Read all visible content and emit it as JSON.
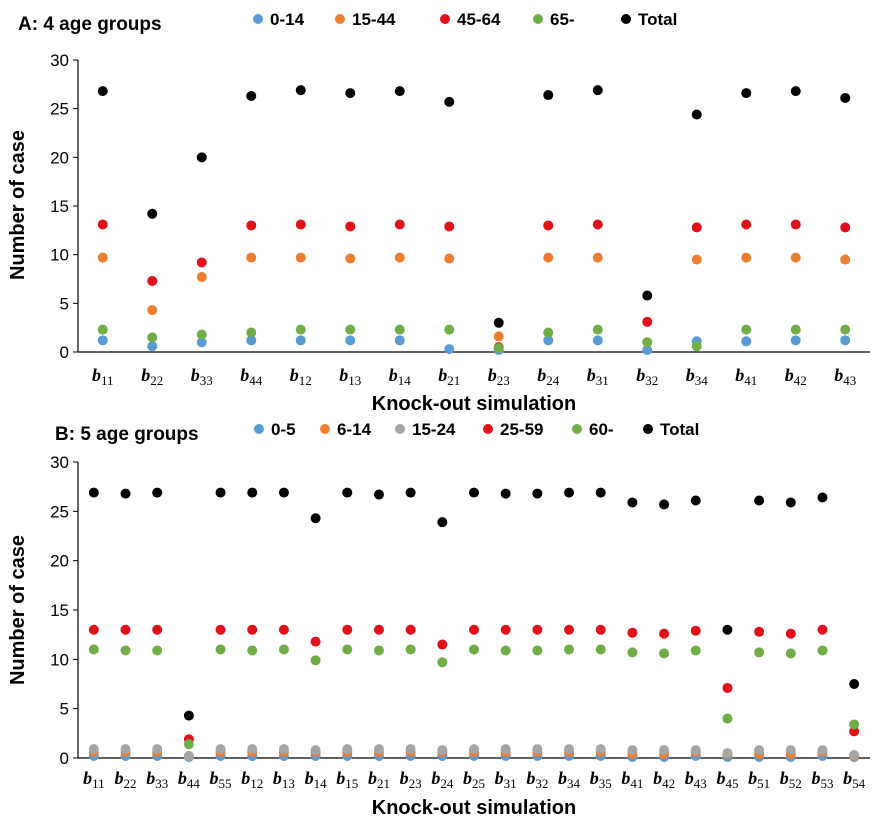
{
  "chart_data": [
    {
      "type": "scatter",
      "title": "A: 4 age groups",
      "xlabel": "Knock-out simulation",
      "ylabel": "Number of case",
      "ylim": [
        0,
        30
      ],
      "yticks": [
        0,
        5,
        10,
        15,
        20,
        25,
        30
      ],
      "grid": false,
      "legend": "top",
      "categories": [
        {
          "base": "b",
          "sub": "11"
        },
        {
          "base": "b",
          "sub": "22"
        },
        {
          "base": "b",
          "sub": "33"
        },
        {
          "base": "b",
          "sub": "44"
        },
        {
          "base": "b",
          "sub": "12"
        },
        {
          "base": "b",
          "sub": "13"
        },
        {
          "base": "b",
          "sub": "14"
        },
        {
          "base": "b",
          "sub": "21"
        },
        {
          "base": "b",
          "sub": "23"
        },
        {
          "base": "b",
          "sub": "24"
        },
        {
          "base": "b",
          "sub": "31"
        },
        {
          "base": "b",
          "sub": "32"
        },
        {
          "base": "b",
          "sub": "34"
        },
        {
          "base": "b",
          "sub": "41"
        },
        {
          "base": "b",
          "sub": "42"
        },
        {
          "base": "b",
          "sub": "43"
        }
      ],
      "series": [
        {
          "name": "0-14",
          "color": "#5b9bd5",
          "values": [
            1.2,
            0.6,
            1.0,
            1.2,
            1.2,
            1.2,
            1.2,
            0.3,
            0.2,
            1.2,
            1.2,
            0.2,
            1.1,
            1.1,
            1.2,
            1.2
          ]
        },
        {
          "name": "15-44",
          "color": "#ed7d31",
          "values": [
            9.7,
            4.3,
            7.7,
            9.7,
            9.7,
            9.6,
            9.7,
            9.6,
            1.6,
            9.7,
            9.7,
            1.0,
            9.5,
            9.7,
            9.7,
            9.5
          ]
        },
        {
          "name": "45-64",
          "color": "#e3101b",
          "values": [
            13.1,
            7.3,
            9.2,
            13.0,
            13.1,
            12.9,
            13.1,
            12.9,
            0.5,
            13.0,
            13.1,
            3.1,
            12.8,
            13.1,
            13.1,
            12.8
          ]
        },
        {
          "name": "65-",
          "color": "#70ad47",
          "values": [
            2.3,
            1.5,
            1.8,
            2.0,
            2.3,
            2.3,
            2.3,
            2.3,
            0.4,
            2.0,
            2.3,
            1.0,
            0.6,
            2.3,
            2.3,
            2.3
          ]
        },
        {
          "name": "Total",
          "color": "#000000",
          "values": [
            26.8,
            14.2,
            20.0,
            26.3,
            26.9,
            26.6,
            26.8,
            25.7,
            3.0,
            26.4,
            26.9,
            5.8,
            24.4,
            26.6,
            26.8,
            26.1
          ]
        }
      ]
    },
    {
      "type": "scatter",
      "title": "B: 5 age groups",
      "xlabel": "Knock-out simulation",
      "ylabel": "Number of case",
      "ylim": [
        0,
        30
      ],
      "yticks": [
        0,
        5,
        10,
        15,
        20,
        25,
        30
      ],
      "grid": false,
      "legend": "top",
      "categories": [
        {
          "base": "b",
          "sub": "11"
        },
        {
          "base": "b",
          "sub": "22"
        },
        {
          "base": "b",
          "sub": "33"
        },
        {
          "base": "b",
          "sub": "44"
        },
        {
          "base": "b",
          "sub": "55"
        },
        {
          "base": "b",
          "sub": "12"
        },
        {
          "base": "b",
          "sub": "13"
        },
        {
          "base": "b",
          "sub": "14"
        },
        {
          "base": "b",
          "sub": "15"
        },
        {
          "base": "b",
          "sub": "21"
        },
        {
          "base": "b",
          "sub": "23"
        },
        {
          "base": "b",
          "sub": "24"
        },
        {
          "base": "b",
          "sub": "25"
        },
        {
          "base": "b",
          "sub": "31"
        },
        {
          "base": "b",
          "sub": "32"
        },
        {
          "base": "b",
          "sub": "34"
        },
        {
          "base": "b",
          "sub": "35"
        },
        {
          "base": "b",
          "sub": "41"
        },
        {
          "base": "b",
          "sub": "42"
        },
        {
          "base": "b",
          "sub": "43"
        },
        {
          "base": "b",
          "sub": "45"
        },
        {
          "base": "b",
          "sub": "51"
        },
        {
          "base": "b",
          "sub": "52"
        },
        {
          "base": "b",
          "sub": "53"
        },
        {
          "base": "b",
          "sub": "54"
        }
      ],
      "series": [
        {
          "name": "0-5",
          "color": "#5b9bd5",
          "values": [
            0.2,
            0.2,
            0.2,
            0.1,
            0.2,
            0.2,
            0.2,
            0.2,
            0.2,
            0.2,
            0.2,
            0.2,
            0.2,
            0.2,
            0.2,
            0.2,
            0.2,
            0.1,
            0.1,
            0.2,
            0.1,
            0.1,
            0.1,
            0.2,
            0.1
          ]
        },
        {
          "name": "6-14",
          "color": "#ed7d31",
          "values": [
            0.6,
            0.6,
            0.6,
            0.2,
            0.6,
            0.6,
            0.6,
            0.6,
            0.6,
            0.6,
            0.6,
            0.6,
            0.6,
            0.6,
            0.6,
            0.6,
            0.6,
            0.4,
            0.4,
            0.6,
            0.4,
            0.4,
            0.4,
            0.6,
            0.2
          ]
        },
        {
          "name": "15-24",
          "color": "#a5a5a5",
          "values": [
            0.9,
            0.9,
            0.9,
            0.2,
            0.9,
            0.9,
            0.9,
            0.8,
            0.9,
            0.9,
            0.9,
            0.8,
            0.9,
            0.9,
            0.9,
            0.9,
            0.9,
            0.8,
            0.8,
            0.8,
            0.5,
            0.8,
            0.8,
            0.8,
            0.3
          ]
        },
        {
          "name": "25-59",
          "color": "#e3101b",
          "values": [
            13.0,
            13.0,
            13.0,
            1.9,
            13.0,
            13.0,
            13.0,
            11.8,
            13.0,
            13.0,
            13.0,
            11.5,
            13.0,
            13.0,
            13.0,
            13.0,
            13.0,
            12.7,
            12.6,
            12.9,
            7.1,
            12.8,
            12.6,
            13.0,
            2.7
          ]
        },
        {
          "name": "60-",
          "color": "#70ad47",
          "values": [
            11.0,
            10.9,
            10.9,
            1.4,
            11.0,
            10.9,
            11.0,
            9.9,
            11.0,
            10.9,
            11.0,
            9.7,
            11.0,
            10.9,
            10.9,
            11.0,
            11.0,
            10.7,
            10.6,
            10.9,
            4.0,
            10.7,
            10.6,
            10.9,
            3.4
          ]
        },
        {
          "name": "Total",
          "color": "#000000",
          "values": [
            26.9,
            26.8,
            26.9,
            4.3,
            26.9,
            26.9,
            26.9,
            24.3,
            26.9,
            26.7,
            26.9,
            23.9,
            26.9,
            26.8,
            26.8,
            26.9,
            26.9,
            25.9,
            25.7,
            26.1,
            13.0,
            26.1,
            25.9,
            26.4,
            7.5
          ]
        }
      ]
    }
  ]
}
